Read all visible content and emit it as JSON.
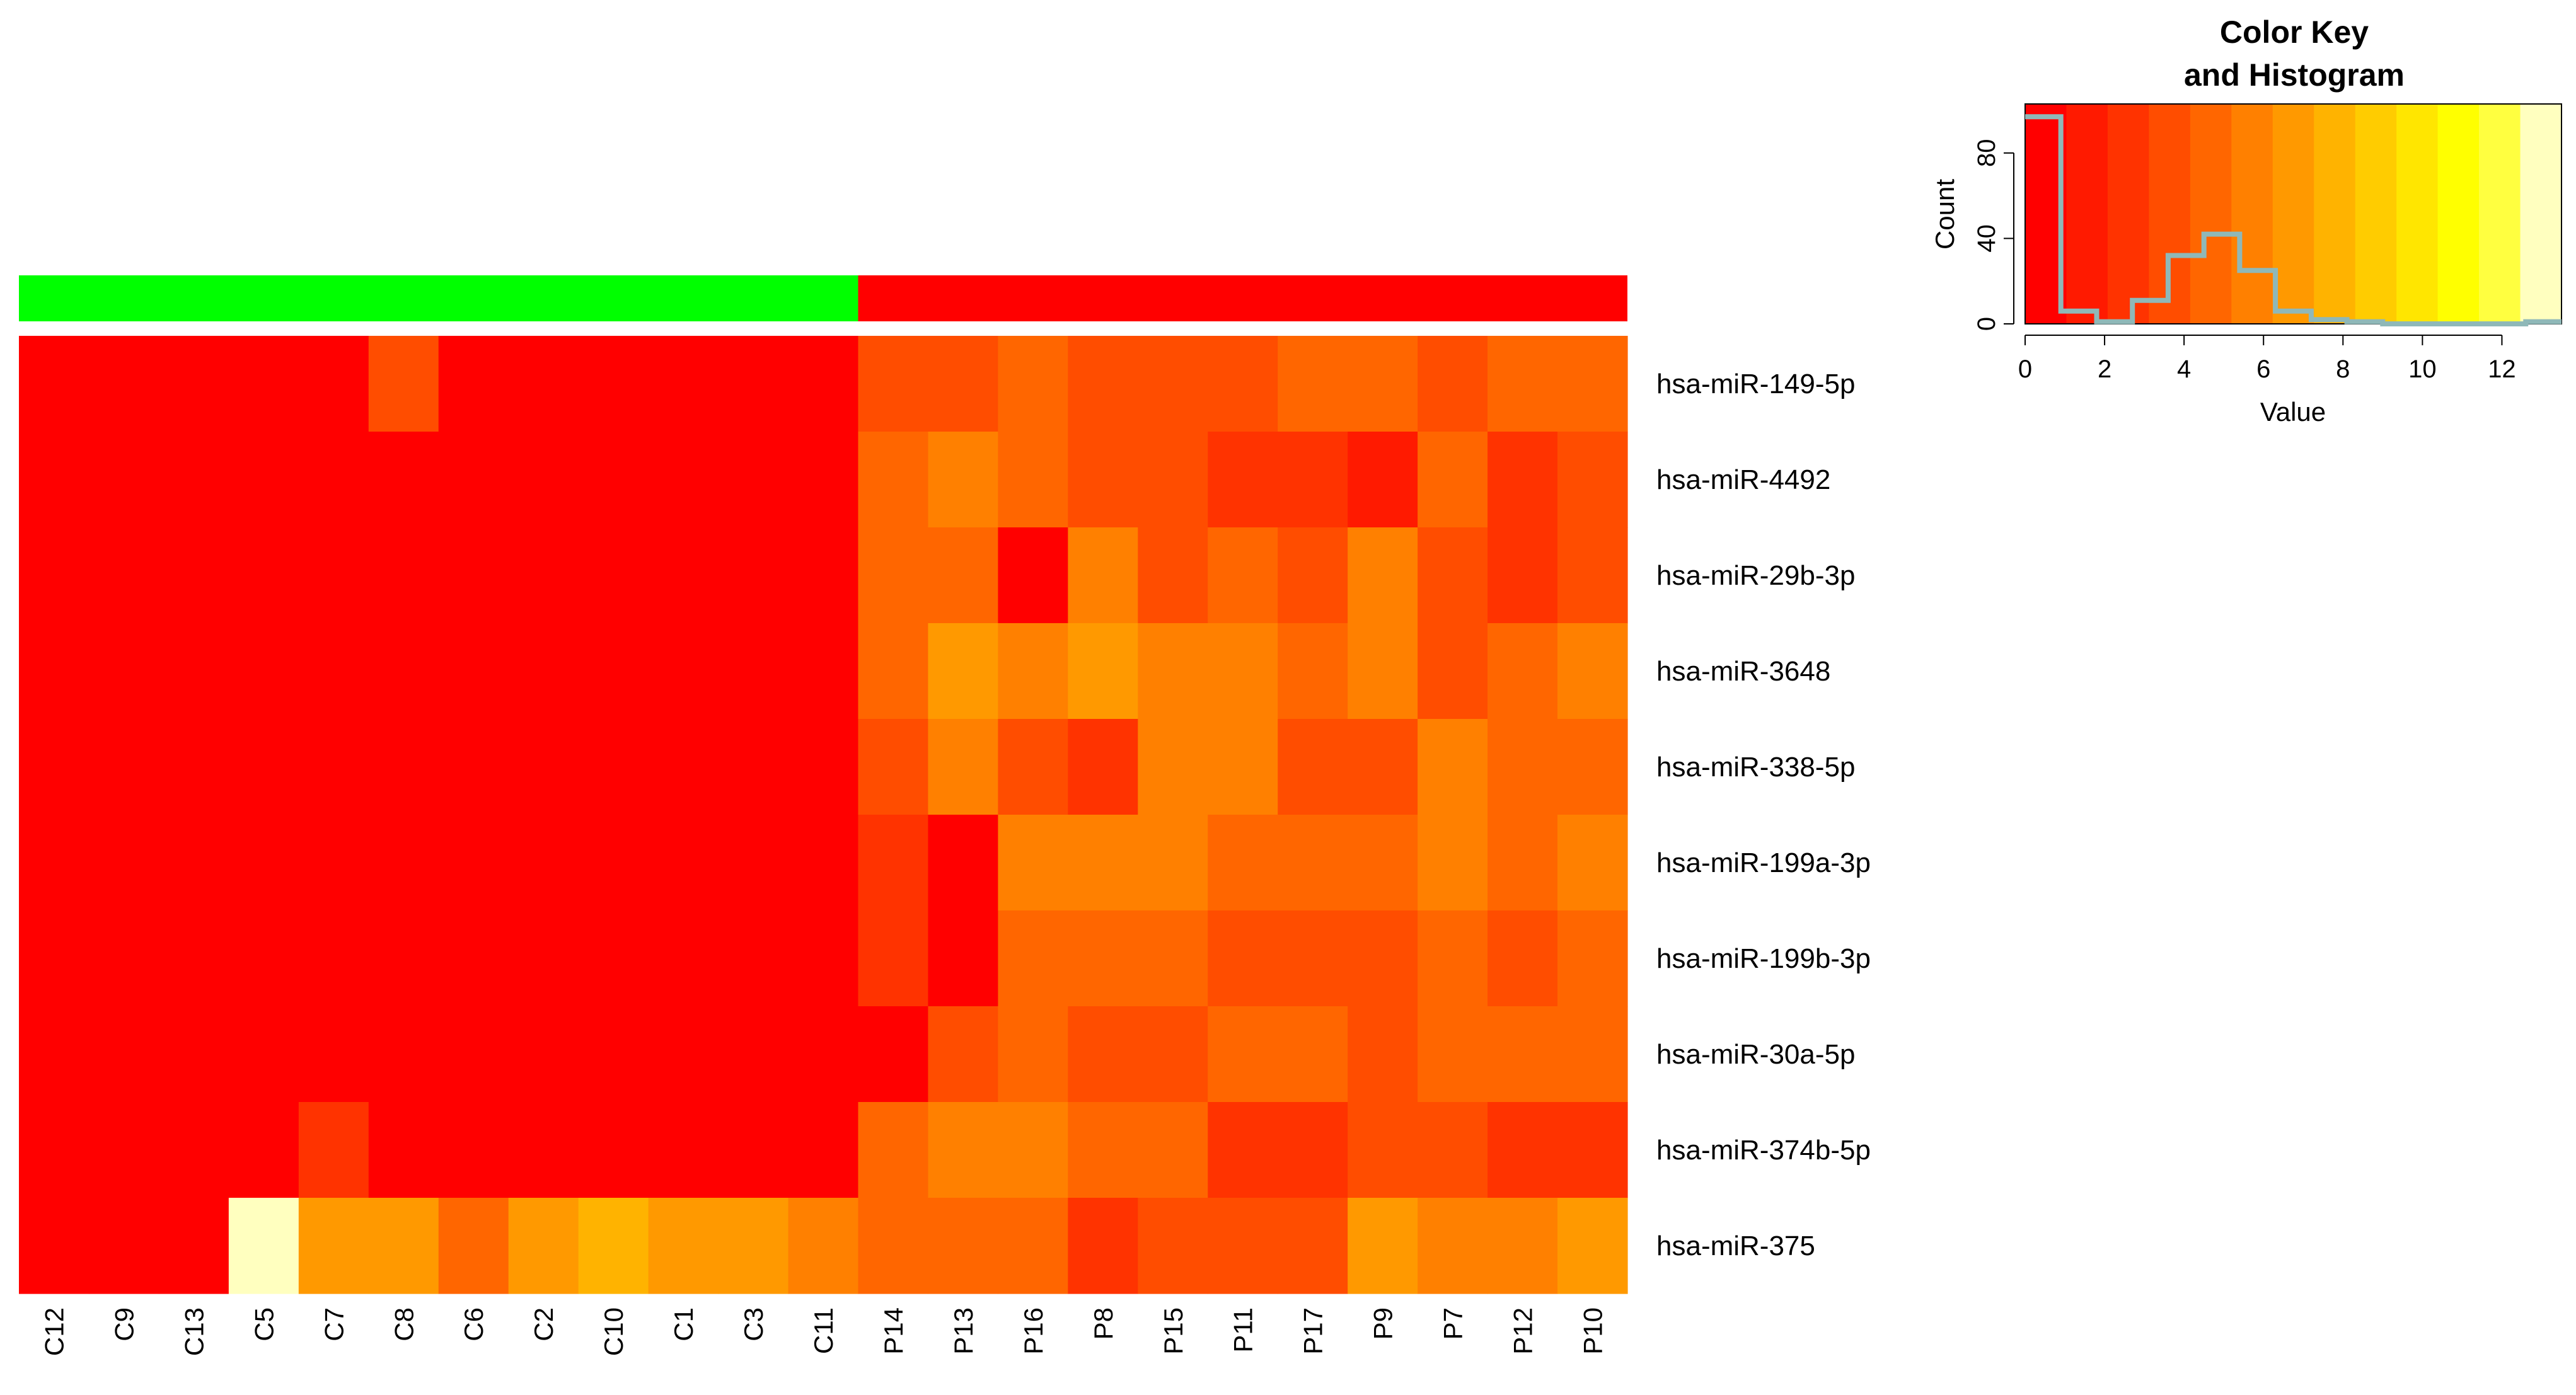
{
  "chart_data": [
    {
      "type": "heatmap",
      "title": "",
      "xlabel": "",
      "ylabel": "",
      "columns": [
        "C12",
        "C9",
        "C13",
        "C5",
        "C7",
        "C8",
        "C6",
        "C2",
        "C10",
        "C1",
        "C3",
        "C11",
        "P14",
        "P13",
        "P16",
        "P8",
        "P15",
        "P11",
        "P17",
        "P9",
        "P7",
        "P12",
        "P10"
      ],
      "rows": [
        "hsa-miR-149-5p",
        "hsa-miR-4492",
        "hsa-miR-29b-3p",
        "hsa-miR-3648",
        "hsa-miR-338-5p",
        "hsa-miR-199a-3p",
        "hsa-miR-199b-3p",
        "hsa-miR-30a-5p",
        "hsa-miR-374b-5p",
        "hsa-miR-375"
      ],
      "column_groups": [
        {
          "color": "#00ff00",
          "columns": [
            "C12",
            "C9",
            "C13",
            "C5",
            "C7",
            "C8",
            "C6",
            "C2",
            "C10",
            "C1",
            "C3",
            "C11"
          ]
        },
        {
          "color": "#ff0000",
          "columns": [
            "P14",
            "P13",
            "P16",
            "P8",
            "P15",
            "P11",
            "P17",
            "P9",
            "P7",
            "P12",
            "P10"
          ]
        }
      ],
      "values": [
        [
          0,
          0,
          0,
          0,
          0,
          3.5,
          0,
          0,
          0,
          0,
          0,
          0,
          4,
          4,
          4.5,
          3.5,
          4,
          4,
          4.5,
          4.5,
          4,
          4.5,
          4.5
        ],
        [
          0,
          0,
          0,
          0,
          0,
          0,
          0,
          0,
          0,
          0,
          0,
          0,
          4.5,
          6,
          5,
          3.5,
          3.5,
          3,
          3,
          2,
          5,
          2.5,
          4
        ],
        [
          0,
          0,
          0,
          0,
          0,
          0,
          0,
          0,
          0,
          0,
          0,
          0,
          4.5,
          4.5,
          0,
          5.5,
          3.5,
          4.5,
          3.5,
          6,
          3.5,
          2.5,
          3.5
        ],
        [
          0,
          0,
          0,
          0,
          0,
          0,
          0,
          0,
          0,
          0,
          0,
          0,
          4.5,
          7,
          6,
          6.5,
          5.5,
          5.5,
          4.5,
          5.5,
          3.5,
          4.5,
          5.5
        ],
        [
          0,
          0,
          0,
          0,
          0,
          0,
          0,
          0,
          0,
          0,
          0,
          0,
          3.5,
          5.5,
          3.5,
          2.5,
          5.5,
          5.5,
          3.5,
          3.5,
          6,
          4.5,
          4.5
        ],
        [
          0,
          0,
          0,
          0,
          0,
          0,
          0,
          1,
          0,
          0,
          0,
          0,
          2.5,
          0,
          5.5,
          5.5,
          5.5,
          4.5,
          4.5,
          4.5,
          5.5,
          4.5,
          5.5
        ],
        [
          0,
          0,
          0,
          0,
          0,
          0,
          0,
          0.5,
          0,
          0,
          0,
          0,
          2.5,
          0,
          4.5,
          4.5,
          4.5,
          4,
          4,
          4,
          4.5,
          3.5,
          4.5
        ],
        [
          0,
          0.5,
          0.5,
          0,
          0.5,
          0,
          0,
          0,
          0,
          0,
          0.5,
          0.5,
          0.5,
          3.5,
          4.5,
          3.5,
          3.5,
          4.5,
          4.5,
          3.5,
          4.5,
          4.5,
          4.5
        ],
        [
          0,
          0,
          0,
          0,
          3,
          0,
          0,
          0,
          0,
          0,
          0,
          0,
          4.5,
          5.5,
          5.5,
          4.5,
          4.5,
          2.5,
          2.5,
          4,
          4,
          3,
          3
        ],
        [
          0,
          0,
          0,
          13,
          6.5,
          6.5,
          5,
          7,
          8,
          7,
          7,
          6,
          4.5,
          4.5,
          5,
          2.5,
          4,
          4,
          4,
          6.5,
          5.5,
          5.5,
          6.5
        ]
      ]
    },
    {
      "type": "area",
      "title": "Color Key\nand Histogram",
      "xlabel": "Value",
      "ylabel": "Count",
      "xlim": [
        0,
        13.5
      ],
      "ylim": [
        0,
        100
      ],
      "x_ticks": [
        0,
        2,
        4,
        6,
        8,
        10,
        12
      ],
      "y_ticks": [
        0,
        40,
        80
      ],
      "color_key": [
        "#ff0000",
        "#ff1a00",
        "#ff3300",
        "#ff4d00",
        "#ff6600",
        "#ff8000",
        "#ff9900",
        "#ffb300",
        "#ffcc00",
        "#ffe600",
        "#ffff00",
        "#ffff40",
        "#ffffbf"
      ],
      "histogram": {
        "bin_edges": [
          0,
          0.9,
          1.8,
          2.7,
          3.6,
          4.5,
          5.4,
          6.3,
          7.2,
          8.1,
          9.0,
          9.9,
          10.8,
          11.7,
          12.6,
          13.5
        ],
        "counts": [
          97,
          6,
          1,
          11,
          32,
          42,
          25,
          6,
          2,
          1,
          0,
          0,
          0,
          0,
          1
        ]
      }
    }
  ]
}
